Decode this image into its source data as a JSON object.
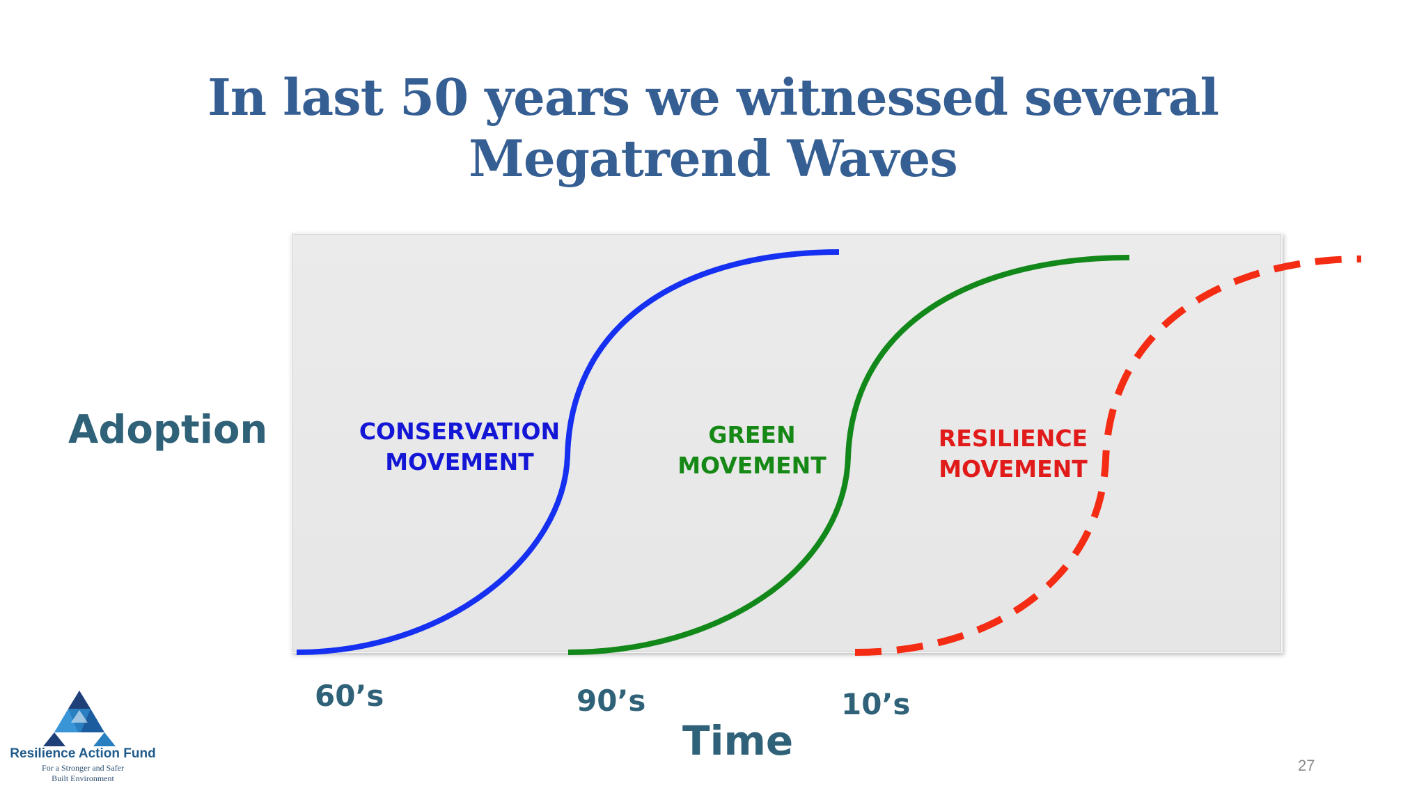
{
  "slide": {
    "title_line1": "In last 50 years we witnessed several",
    "title_line2": "Megatrend Waves",
    "page_number": "27"
  },
  "diagram": {
    "y_axis_label": "Adoption",
    "x_axis_label": "Time",
    "decades": [
      "60’s",
      "90’s",
      "10’s"
    ],
    "movements": [
      {
        "line1": "CONSERVATION",
        "line2": "MOVEMENT",
        "color": "#1530f0",
        "style": "solid"
      },
      {
        "line1": "GREEN",
        "line2": "MOVEMENT",
        "color": "#13881a",
        "style": "solid"
      },
      {
        "line1": "RESILIENCE",
        "line2": "MOVEMENT",
        "color": "#f42c14",
        "style": "dashed"
      }
    ]
  },
  "logo": {
    "name": "Resilience Action Fund",
    "tagline_line1": "For a Stronger and Safer",
    "tagline_line2": "Built Environment"
  }
}
